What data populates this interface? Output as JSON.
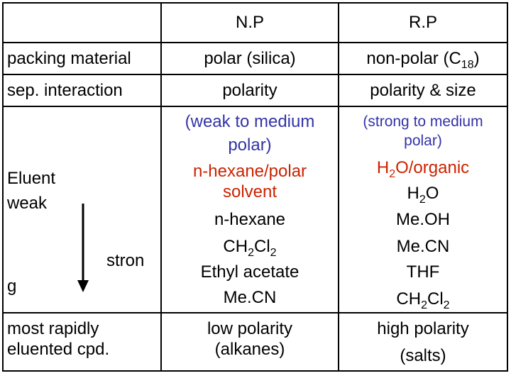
{
  "colors": {
    "blue": "#3333aa",
    "red": "#cc2200",
    "line": "#000000"
  },
  "header": {
    "np": "N.P",
    "rp": "R.P"
  },
  "packing": {
    "label": "packing material",
    "np": "polar (silica)",
    "rp_pre": "non-polar (C",
    "rp_sub": "18",
    "rp_post": ")"
  },
  "interaction": {
    "label": "sep. interaction",
    "np": "polarity",
    "rp": "polarity & size"
  },
  "eluent": {
    "label_line1": "Eluent",
    "label_line2": "weak",
    "stron": "stron",
    "g": "g",
    "np": {
      "desc_line1": "(weak to medium",
      "desc_line2": "polar)",
      "solv_line1": "n-hexane/polar",
      "solv_line2": "solvent",
      "items": [
        "n-hexane",
        "CH",
        "2",
        "Cl",
        "2",
        "Ethyl acetate",
        "Me.CN"
      ]
    },
    "rp": {
      "desc_line1": "(strong to medium",
      "desc_line2": "polar)",
      "solv_pre": "H",
      "solv_sub": "2",
      "solv_post": "O/organic",
      "h2o_pre": "H",
      "h2o_sub": "2",
      "h2o_post": "O",
      "meoh": "Me.OH",
      "mecn": "Me.CN",
      "thf": "THF",
      "ch2cl2_a": "CH",
      "ch2cl2_b": "2",
      "ch2cl2_c": "Cl",
      "ch2cl2_d": "2"
    }
  },
  "eluted": {
    "label_line1": "most rapidly",
    "label_line2": "eluented cpd.",
    "np_line1": "low polarity",
    "np_line2": "(alkanes)",
    "rp_line1": "high polarity",
    "rp_line2": "(salts)"
  }
}
